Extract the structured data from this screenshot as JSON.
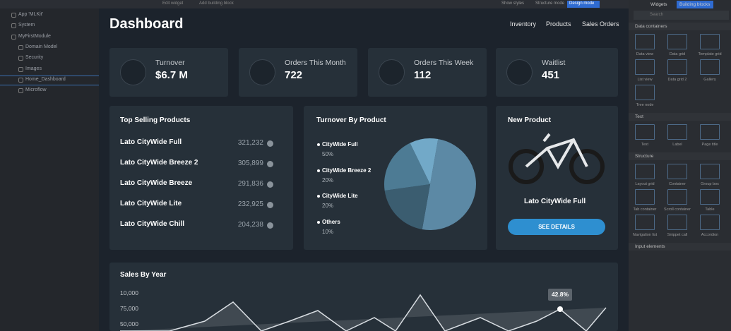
{
  "topbar": {
    "left": [
      "Edit widget",
      "Add building block"
    ],
    "right": [
      "Show styles",
      "Structure mode",
      "Design mode"
    ]
  },
  "tree": [
    "App 'MLKit'",
    "System",
    "MyFirstModule",
    "Domain Model",
    "Security",
    "Images",
    "Home_Dashboard",
    "Microflow"
  ],
  "dashboard": {
    "title": "Dashboard",
    "nav": [
      "Inventory",
      "Products",
      "Sales Orders"
    ],
    "stats": [
      {
        "label": "Turnover",
        "value": "$6.7 M"
      },
      {
        "label": "Orders This Month",
        "value": "722"
      },
      {
        "label": "Orders This Week",
        "value": "112"
      },
      {
        "label": "Waitlist",
        "value": "451"
      }
    ],
    "top_selling": {
      "title": "Top Selling Products",
      "rows": [
        [
          "Lato CityWide Full",
          "321,232"
        ],
        [
          "Lato CityWide Breeze 2",
          "305,899"
        ],
        [
          "Lato CityWide Breeze",
          "291,836"
        ],
        [
          "Lato CityWide Lite",
          "232,925"
        ],
        [
          "Lato CityWide Chill",
          "204,238"
        ]
      ]
    },
    "turnover": {
      "title": "Turnover By Product",
      "items": [
        {
          "name": "CityWide Full",
          "value": 50,
          "value_label": "50%",
          "color": "#5c89a5"
        },
        {
          "name": "CityWide Breeze 2",
          "value": 20,
          "value_label": "20%",
          "color": "#3b5d70"
        },
        {
          "name": "CityWide Lite",
          "value": 20,
          "value_label": "20%",
          "color": "#4d7b94"
        },
        {
          "name": "Others",
          "value": 10,
          "value_label": "10%",
          "color": "#72a9c8"
        }
      ]
    },
    "new_product": {
      "title": "New Product",
      "name": "Lato CityWide Full",
      "button": "SEE DETAILS"
    },
    "sales": {
      "title": "Sales By Year",
      "axis_labels": [
        "10,000",
        "75,000",
        "50,000"
      ],
      "annotation": "42.8%"
    }
  },
  "widgets": {
    "tabs": [
      "Widgets",
      "Building blocks"
    ],
    "search": "Search",
    "sections": [
      {
        "title": "Data containers",
        "items": [
          "Data view",
          "Data grid",
          "Template grid",
          "List view",
          "Data grid 2",
          "Gallery",
          "Tree node"
        ]
      },
      {
        "title": "Text",
        "items": [
          "Text",
          "Label",
          "Page title"
        ]
      },
      {
        "title": "Structure",
        "items": [
          "Layout grid",
          "Container",
          "Group box",
          "Tab container",
          "Scroll container",
          "Table",
          "Navigation list",
          "Snippet call",
          "Accordion"
        ]
      },
      {
        "title": "Input elements",
        "items": []
      }
    ]
  }
}
